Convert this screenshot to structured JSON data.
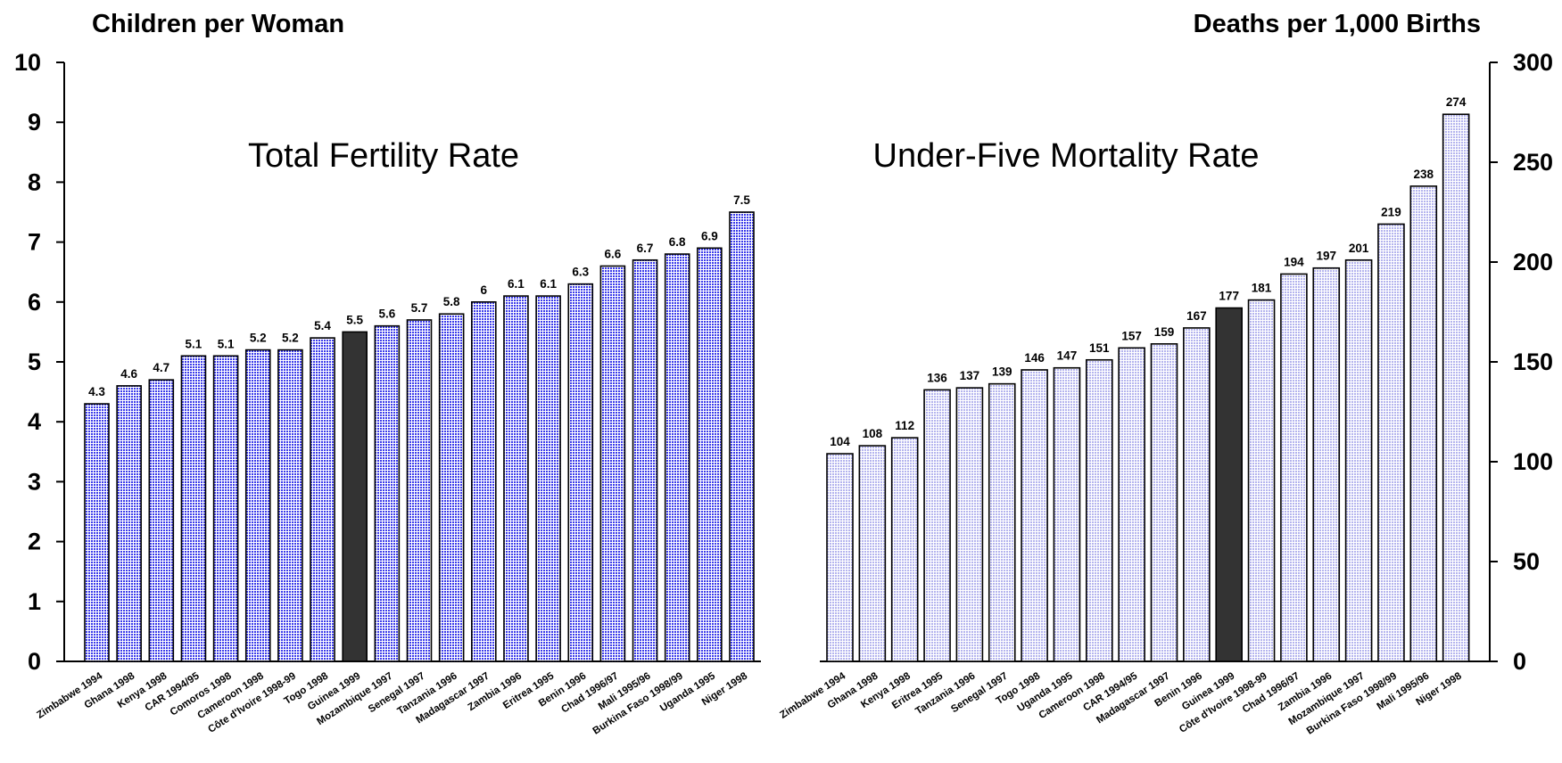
{
  "chart_data": [
    {
      "type": "bar",
      "title": "Total Fertility Rate",
      "ylabel": "Children per Woman",
      "ylim": [
        0,
        10
      ],
      "yticks": [
        0,
        1,
        2,
        3,
        4,
        5,
        6,
        7,
        8,
        9,
        10
      ],
      "axis_side": "left",
      "categories": [
        "Zimbabwe 1994",
        "Ghana 1998",
        "Kenya 1998",
        "CAR 1994/95",
        "Comoros 1998",
        "Cameroon 1998",
        "Côte d'Ivoire 1998-99",
        "Togo 1998",
        "Guinea 1999",
        "Mozambique 1997",
        "Senegal 1997",
        "Tanzania 1996",
        "Madagascar 1997",
        "Zambia 1996",
        "Eritrea 1995",
        "Benin 1996",
        "Chad 1996/97",
        "Mali 1995/96",
        "Burkina Faso 1998/99",
        "Uganda 1995",
        "Niger 1998"
      ],
      "values": [
        4.3,
        4.6,
        4.7,
        5.1,
        5.1,
        5.2,
        5.2,
        5.4,
        5.5,
        5.6,
        5.7,
        5.8,
        6,
        6.1,
        6.1,
        6.3,
        6.6,
        6.7,
        6.8,
        6.9,
        7.5
      ],
      "value_labels": [
        "4.3",
        "4.6",
        "4.7",
        "5.1",
        "5.1",
        "5.2",
        "5.2",
        "5.4",
        "5.5",
        "5.6",
        "5.7",
        "5.8",
        "6",
        "6.1",
        "6.1",
        "6.3",
        "6.6",
        "6.7",
        "6.8",
        "6.9",
        "7.5"
      ],
      "highlight": "Guinea 1999",
      "bar_color": "#3a3aea",
      "highlight_color": "#333333"
    },
    {
      "type": "bar",
      "title": "Under-Five Mortality Rate",
      "ylabel": "Deaths per 1,000 Births",
      "ylim": [
        0,
        300
      ],
      "yticks": [
        0,
        50,
        100,
        150,
        200,
        250,
        300
      ],
      "axis_side": "right",
      "categories": [
        "Zimbabwe 1994",
        "Ghana 1998",
        "Kenya 1998",
        "Eritrea 1995",
        "Tanzania 1996",
        "Senegal 1997",
        "Togo 1998",
        "Uganda 1995",
        "Cameroon 1998",
        "CAR 1994/95",
        "Madagascar 1997",
        "Benin 1996",
        "Guinea 1999",
        "Côte d'Ivoire 1998-99",
        "Chad 1996/97",
        "Zambia 1996",
        "Mozambique 1997",
        "Burkina Faso 1998/99",
        "Mali 1995/96",
        "Niger 1998"
      ],
      "values": [
        104,
        108,
        112,
        136,
        137,
        139,
        146,
        147,
        151,
        157,
        159,
        167,
        177,
        181,
        194,
        197,
        201,
        219,
        238,
        274
      ],
      "value_labels": [
        "104",
        "108",
        "112",
        "136",
        "137",
        "139",
        "146",
        "147",
        "151",
        "157",
        "159",
        "167",
        "177",
        "181",
        "194",
        "197",
        "201",
        "219",
        "238",
        "274"
      ],
      "highlight": "Guinea 1999",
      "bar_color": "#b4b4ee",
      "highlight_color": "#333333"
    }
  ]
}
